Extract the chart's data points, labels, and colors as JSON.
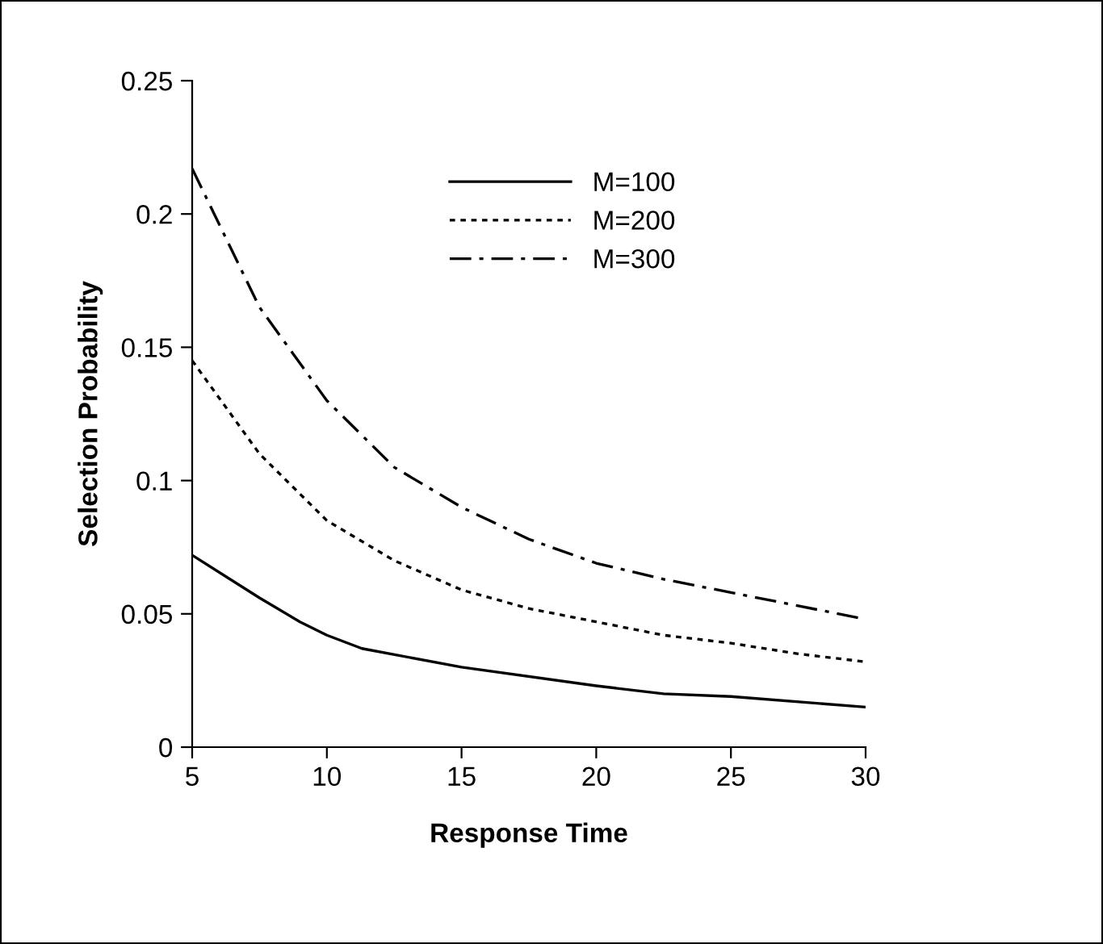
{
  "chart_data": {
    "type": "line",
    "xlabel": "Response Time",
    "ylabel": "Selection Probability",
    "xlim": [
      5,
      30
    ],
    "xticks": [
      5,
      10,
      15,
      20,
      25,
      30
    ],
    "ylim": [
      0,
      0.25
    ],
    "yticks": [
      0,
      0.05,
      0.1,
      0.15,
      0.2,
      0.25
    ],
    "grid": false,
    "legend": "top",
    "marker": "none",
    "series": [
      {
        "name": "M=100",
        "color": "#000000",
        "line_style": "solid",
        "x": [
          5,
          7.5,
          9,
          10,
          11.3,
          15,
          20,
          22.5,
          25,
          30
        ],
        "values": [
          0.072,
          0.056,
          0.047,
          0.042,
          0.037,
          0.03,
          0.023,
          0.02,
          0.019,
          0.015
        ]
      },
      {
        "name": "M=200",
        "color": "#000000",
        "line_style": "dotted",
        "x": [
          5,
          7.5,
          10,
          12.5,
          15,
          17.5,
          20,
          22.5,
          25,
          27.5,
          30
        ],
        "values": [
          0.145,
          0.11,
          0.085,
          0.07,
          0.059,
          0.052,
          0.047,
          0.042,
          0.039,
          0.035,
          0.032
        ]
      },
      {
        "name": "M=300",
        "color": "#000000",
        "line_style": "dashdot",
        "x": [
          5,
          7.5,
          10,
          12.5,
          15,
          17.5,
          20,
          22.5,
          25,
          27.5,
          30
        ],
        "values": [
          0.217,
          0.165,
          0.13,
          0.105,
          0.09,
          0.078,
          0.069,
          0.063,
          0.058,
          0.053,
          0.048
        ]
      }
    ]
  }
}
